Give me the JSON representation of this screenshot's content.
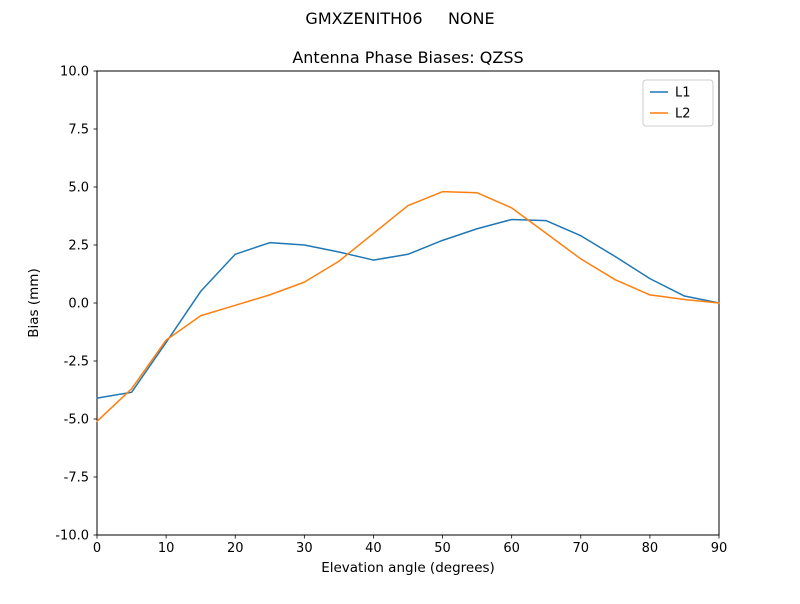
{
  "figure": {
    "suptitle": "GMXZENITH06     NONE"
  },
  "chart_data": {
    "type": "line",
    "title": "Antenna Phase Biases: QZSS",
    "suptitle": "GMXZENITH06     NONE",
    "xlabel": "Elevation angle (degrees)",
    "ylabel": "Bias (mm)",
    "xlim": [
      0,
      90
    ],
    "ylim": [
      -10,
      10
    ],
    "grid": false,
    "legend_position": "upper right",
    "xticks": [
      0,
      10,
      20,
      30,
      40,
      50,
      60,
      70,
      80,
      90
    ],
    "xtick_labels": [
      "0",
      "10",
      "20",
      "30",
      "40",
      "50",
      "60",
      "70",
      "80",
      "90"
    ],
    "yticks": [
      -10,
      -7.5,
      -5,
      -2.5,
      0,
      2.5,
      5,
      7.5,
      10
    ],
    "ytick_labels": [
      "-10.0",
      "-7.5",
      "-5.0",
      "-2.5",
      "0.0",
      "2.5",
      "5.0",
      "7.5",
      "10.0"
    ],
    "x": [
      0,
      5,
      10,
      15,
      20,
      25,
      30,
      35,
      40,
      45,
      50,
      55,
      60,
      65,
      70,
      75,
      80,
      85,
      90
    ],
    "series": [
      {
        "name": "L1",
        "color": "#1f77b4",
        "values": [
          -4.1,
          -3.85,
          -1.7,
          0.5,
          2.1,
          2.6,
          2.5,
          2.2,
          1.85,
          2.1,
          2.7,
          3.2,
          3.6,
          3.55,
          2.9,
          2.0,
          1.05,
          0.3,
          0.0
        ]
      },
      {
        "name": "L2",
        "color": "#ff7f0e",
        "values": [
          -5.1,
          -3.7,
          -1.6,
          -0.55,
          -0.1,
          0.35,
          0.9,
          1.8,
          3.0,
          4.2,
          4.8,
          4.75,
          4.1,
          3.0,
          1.9,
          1.0,
          0.35,
          0.15,
          0.0
        ]
      }
    ]
  }
}
